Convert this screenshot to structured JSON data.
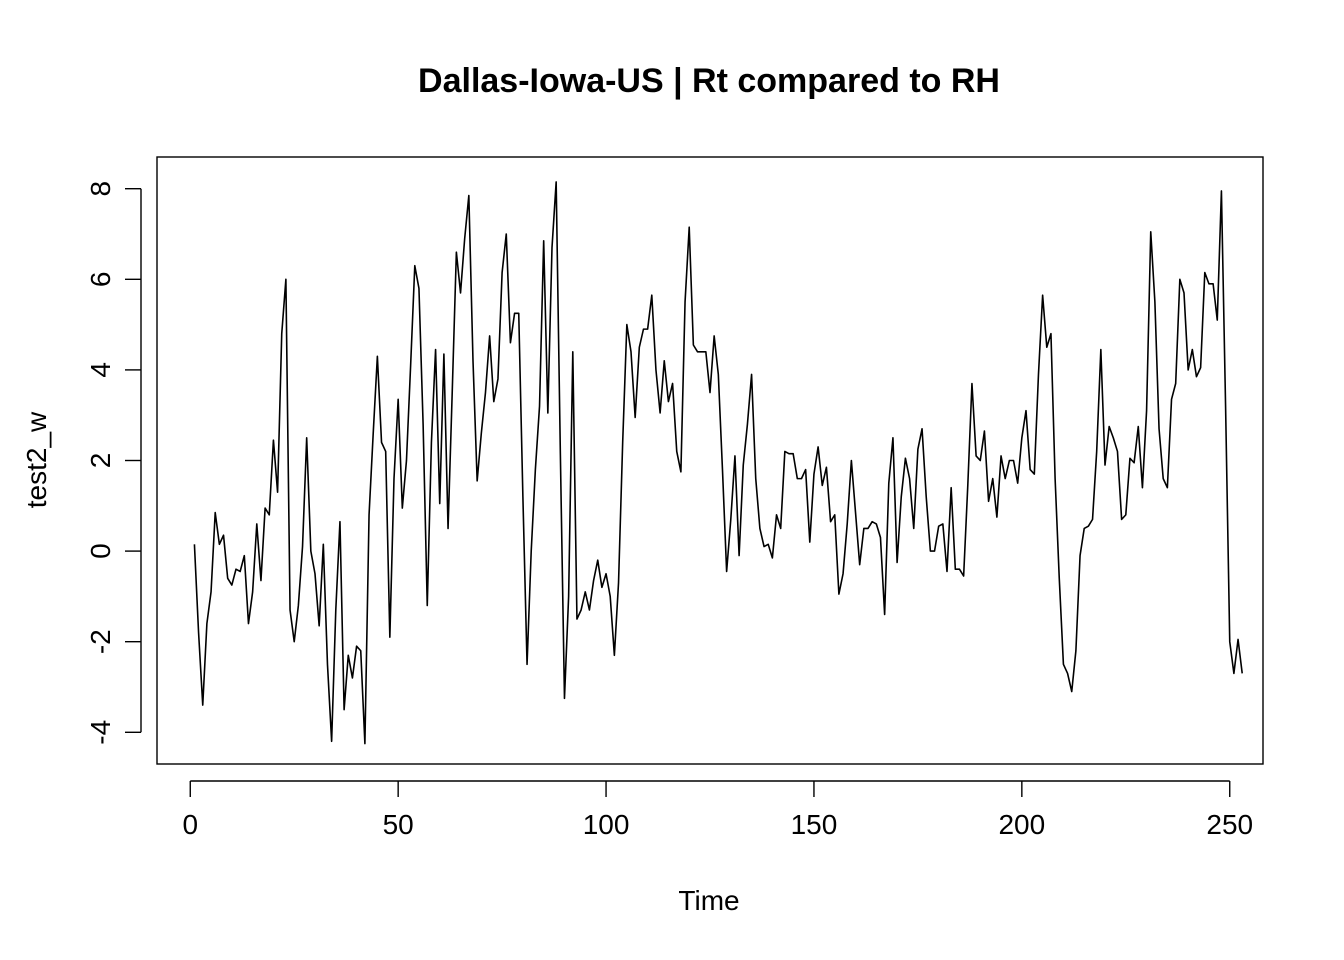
{
  "chart_data": {
    "type": "line",
    "title": "Dallas-Iowa-US | Rt compared to RH",
    "xlabel": "Time",
    "ylabel": "test2_w",
    "xlim": [
      -8,
      258
    ],
    "ylim": [
      -4.7,
      8.7
    ],
    "x_ticks": [
      0,
      50,
      100,
      150,
      200,
      250
    ],
    "y_ticks": [
      -4,
      -2,
      0,
      2,
      4,
      6,
      8
    ],
    "x_tick_labels": [
      "0",
      "50",
      "100",
      "150",
      "200",
      "250"
    ],
    "y_tick_labels": [
      "-4",
      "-2",
      "0",
      "2",
      "4",
      "6",
      "8"
    ],
    "grid": false,
    "legend": "none",
    "line_color": "#000000",
    "series": [
      {
        "x_start": 1,
        "values": [
          0.15,
          -1.8,
          -3.4,
          -1.6,
          -0.9,
          0.85,
          0.15,
          0.35,
          -0.6,
          -0.75,
          -0.4,
          -0.45,
          -0.1,
          -1.6,
          -0.9,
          0.6,
          -0.65,
          0.95,
          0.8,
          2.45,
          1.3,
          4.8,
          6.0,
          -1.3,
          -2.0,
          -1.2,
          0.1,
          2.5,
          0.0,
          -0.5,
          -1.65,
          0.15,
          -2.5,
          -4.2,
          -1.3,
          0.65,
          -3.5,
          -2.3,
          -2.8,
          -2.1,
          -2.2,
          -4.25,
          0.8,
          2.6,
          4.3,
          2.4,
          2.2,
          -1.9,
          1.6,
          3.35,
          0.95,
          2.0,
          4.1,
          6.3,
          5.8,
          2.8,
          -1.2,
          2.4,
          4.45,
          1.05,
          4.35,
          0.5,
          3.5,
          6.6,
          5.7,
          6.9,
          7.85,
          4.2,
          1.55,
          2.6,
          3.5,
          4.75,
          3.3,
          3.8,
          6.15,
          7.0,
          4.6,
          5.25,
          5.25,
          1.2,
          -2.5,
          0.0,
          1.8,
          3.2,
          6.85,
          3.05,
          6.7,
          8.15,
          2.2,
          -3.25,
          -1.0,
          4.4,
          -1.5,
          -1.3,
          -0.9,
          -1.3,
          -0.65,
          -0.2,
          -0.8,
          -0.5,
          -1.0,
          -2.3,
          -0.7,
          2.4,
          5.0,
          4.4,
          2.95,
          4.5,
          4.9,
          4.9,
          5.65,
          4.0,
          3.05,
          4.2,
          3.3,
          3.7,
          2.2,
          1.75,
          5.5,
          7.15,
          4.55,
          4.4,
          4.4,
          4.4,
          3.5,
          4.75,
          3.9,
          1.8,
          -0.45,
          0.7,
          2.1,
          -0.1,
          1.9,
          2.8,
          3.9,
          1.6,
          0.5,
          0.1,
          0.15,
          -0.15,
          0.8,
          0.5,
          2.2,
          2.15,
          2.15,
          1.6,
          1.6,
          1.8,
          0.2,
          1.7,
          2.3,
          1.45,
          1.85,
          0.65,
          0.8,
          -0.95,
          -0.5,
          0.6,
          2.0,
          0.85,
          -0.3,
          0.5,
          0.5,
          0.65,
          0.6,
          0.3,
          -1.4,
          1.5,
          2.5,
          -0.25,
          1.2,
          2.05,
          1.6,
          0.5,
          2.25,
          2.7,
          1.2,
          0.0,
          0.0,
          0.55,
          0.6,
          -0.45,
          1.4,
          -0.4,
          -0.4,
          -0.55,
          1.45,
          3.7,
          2.1,
          2.0,
          2.65,
          1.1,
          1.6,
          0.75,
          2.1,
          1.6,
          2.0,
          2.0,
          1.5,
          2.5,
          3.1,
          1.8,
          1.7,
          3.9,
          5.65,
          4.5,
          4.8,
          1.6,
          -0.6,
          -2.5,
          -2.7,
          -3.1,
          -2.2,
          -0.1,
          0.5,
          0.55,
          0.7,
          2.2,
          4.45,
          1.9,
          2.75,
          2.5,
          2.2,
          0.7,
          0.8,
          2.05,
          1.95,
          2.75,
          1.4,
          3.1,
          7.05,
          5.5,
          2.7,
          1.6,
          1.4,
          3.35,
          3.7,
          6.0,
          5.7,
          4.0,
          4.45,
          3.85,
          4.05,
          6.15,
          5.9,
          5.9,
          5.1,
          7.95,
          3.2,
          -2.0,
          -2.7,
          -1.95,
          -2.7
        ]
      }
    ]
  }
}
